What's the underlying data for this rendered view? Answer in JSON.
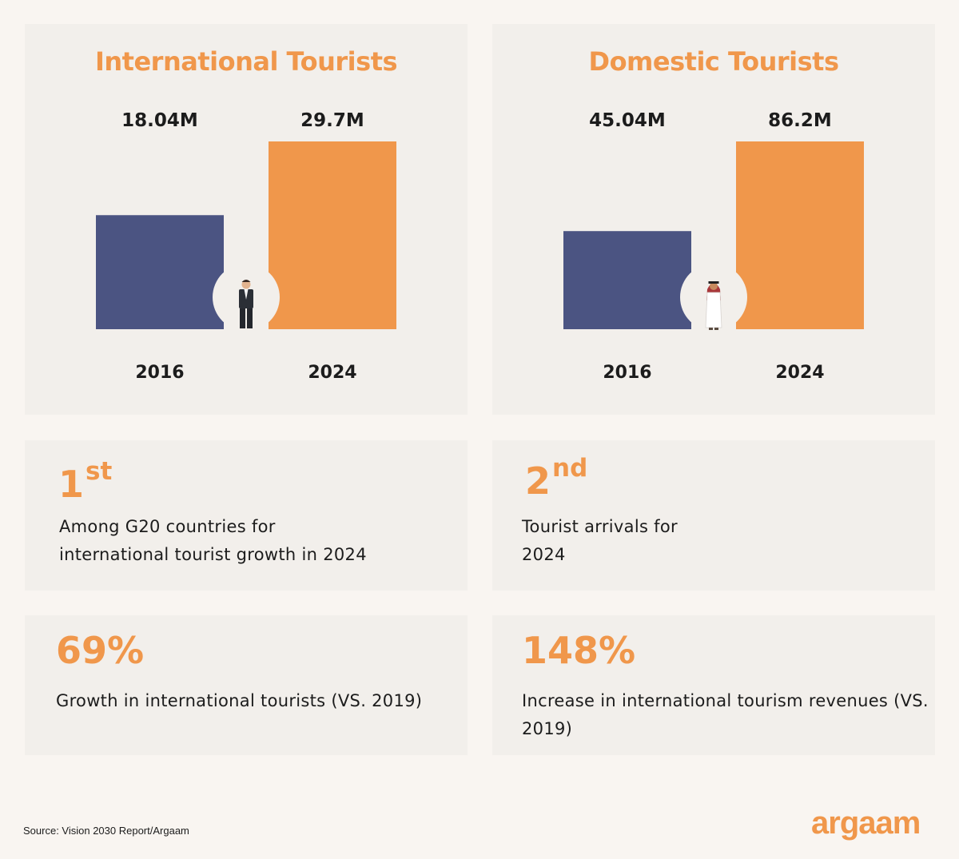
{
  "theme": {
    "accent": "#f0974b",
    "bar_2016": "#4b5482",
    "bar_2024": "#f0974b",
    "text": "#1c1c1c"
  },
  "chart_data": [
    {
      "type": "bar",
      "title": "International Tourists",
      "categories": [
        "2016",
        "2024"
      ],
      "values": [
        18.04,
        29.7
      ],
      "data_labels": [
        "18.04M",
        "29.7M"
      ],
      "ylim": [
        0,
        29.7
      ],
      "icon": "businessman-icon"
    },
    {
      "type": "bar",
      "title": "Domestic Tourists",
      "categories": [
        "2016",
        "2024"
      ],
      "values": [
        45.04,
        86.2
      ],
      "data_labels": [
        "45.04M",
        "86.2M"
      ],
      "ylim": [
        0,
        86.2
      ],
      "icon": "saudi-man-icon"
    }
  ],
  "stats": {
    "rank1": {
      "number": "1",
      "suffix": "st",
      "text_line1": "Among G20 countries for",
      "text_line2": "international tourist growth in 2024"
    },
    "rank2": {
      "number": "2",
      "suffix": "nd",
      "text_line1": "Tourist arrivals for",
      "text_line2": "2024"
    },
    "growth": {
      "value": "69%",
      "text": "Growth in international tourists (VS. 2019)"
    },
    "revenue": {
      "value": "148%",
      "text_line1": "Increase in international tourism revenues (VS.",
      "text_line2": "2019)"
    }
  },
  "footer": {
    "source": "Source: Vision 2030 Report/Argaam",
    "brand": "argaam"
  }
}
